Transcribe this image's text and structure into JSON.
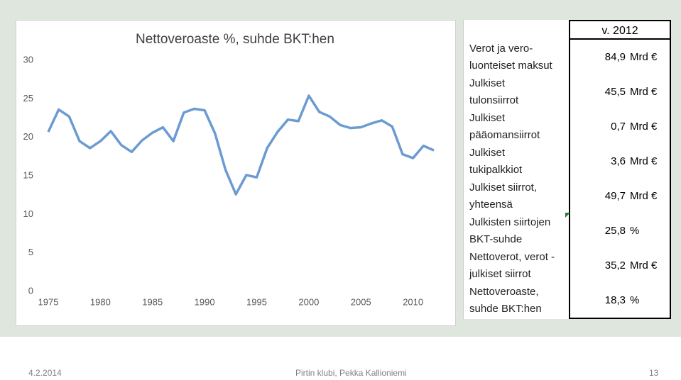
{
  "chart_data": {
    "type": "line",
    "title": "Nettoveroaste %, suhde BKT:hen",
    "x": [
      1975,
      1976,
      1977,
      1978,
      1979,
      1980,
      1981,
      1982,
      1983,
      1984,
      1985,
      1986,
      1987,
      1988,
      1989,
      1990,
      1991,
      1992,
      1993,
      1994,
      1995,
      1996,
      1997,
      1998,
      1999,
      2000,
      2001,
      2002,
      2003,
      2004,
      2005,
      2006,
      2007,
      2008,
      2009,
      2010,
      2011,
      2012
    ],
    "values": [
      20.7,
      23.6,
      22.7,
      19.5,
      18.6,
      19.5,
      20.8,
      19.0,
      18.1,
      19.6,
      20.6,
      21.3,
      19.5,
      23.2,
      23.7,
      23.5,
      20.5,
      15.8,
      12.6,
      15.1,
      14.8,
      18.6,
      20.7,
      22.3,
      22.1,
      25.4,
      23.3,
      22.7,
      21.6,
      21.2,
      21.3,
      21.8,
      22.2,
      21.4,
      17.8,
      17.3,
      18.9,
      18.3
    ],
    "color": "#6b9bd1",
    "xlim": [
      1975,
      2012
    ],
    "xticks": [
      1975,
      1980,
      1985,
      1990,
      1995,
      2000,
      2005,
      2010
    ],
    "ylim": [
      0,
      30
    ],
    "yticks": [
      0,
      5,
      10,
      15,
      20,
      25,
      30
    ],
    "grid": false
  },
  "table": {
    "header": "v. 2012",
    "rows": [
      {
        "label": [
          "Verot ja vero-",
          "luonteiset maksut"
        ],
        "value": "84,9",
        "unit": "Mrd €"
      },
      {
        "label": [
          "Julkiset",
          "tulonsiirrot"
        ],
        "value": "45,5",
        "unit": "Mrd €"
      },
      {
        "label": [
          "Julkiset",
          "pääomansiirrot"
        ],
        "value": "0,7",
        "unit": "Mrd €"
      },
      {
        "label": [
          "Julkiset",
          "tukipalkkiot"
        ],
        "value": "3,6",
        "unit": "Mrd €"
      },
      {
        "label": [
          "Julkiset siirrot,",
          "yhteensä"
        ],
        "value": "49,7",
        "unit": "Mrd €"
      },
      {
        "label": [
          "Julkisten siirtojen",
          "BKT-suhde"
        ],
        "value": "25,8",
        "unit": "%"
      },
      {
        "label": [
          "Nettoverot, verot -",
          "julkiset siirrot"
        ],
        "value": "35,2",
        "unit": "Mrd €"
      },
      {
        "label": [
          "Nettoveroaste,",
          "suhde BKT:hen"
        ],
        "value": "18,3",
        "unit": "%"
      }
    ]
  },
  "footer": {
    "date": "4.2.2014",
    "center": "Pirtin klubi, Pekka Kallioniemi",
    "page": "13"
  }
}
